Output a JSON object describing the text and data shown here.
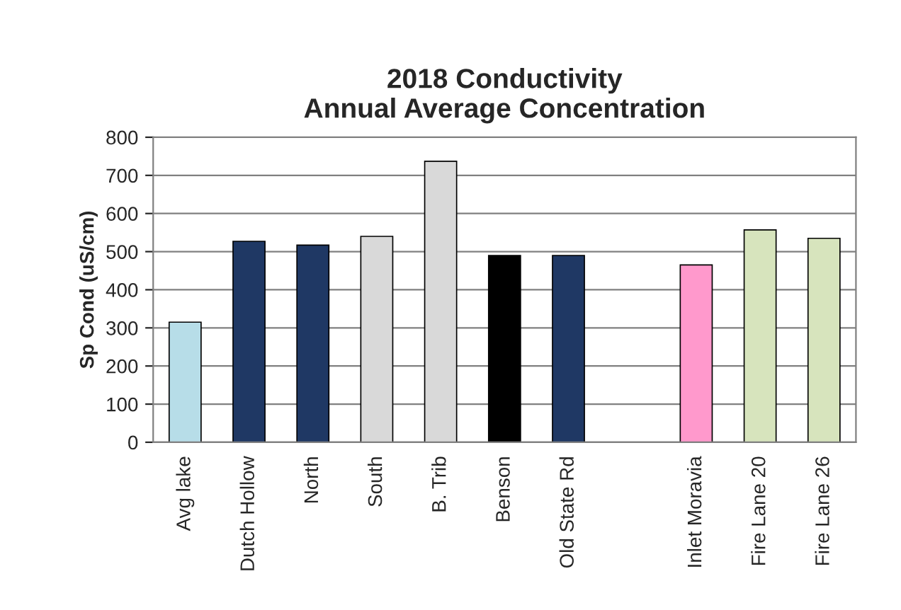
{
  "chart_data": {
    "type": "bar",
    "title": "2018 Conductivity\nAnnual Average Concentration",
    "ylabel": "Sp Cond (uS/cm)",
    "categories": [
      "Avg lake",
      "Dutch Hollow",
      "North",
      "South",
      "B. Trib",
      "Benson",
      "Old State Rd",
      null,
      "Inlet Moravia",
      "Fire Lane 20",
      "Fire Lane 26"
    ],
    "values": [
      315,
      527,
      517,
      540,
      737,
      490,
      490,
      null,
      465,
      557,
      535
    ],
    "colors": [
      "#b7dde8",
      "#1f3864",
      "#1f3864",
      "#d9d9d9",
      "#d9d9d9",
      "#000000",
      "#1f3864",
      "#ffffff",
      "#ff99cc",
      "#d7e4bd",
      "#d7e4bd"
    ],
    "ylim": [
      0,
      800
    ],
    "yticks": [
      0,
      100,
      200,
      300,
      400,
      500,
      600,
      700,
      800
    ],
    "grid": "y"
  }
}
